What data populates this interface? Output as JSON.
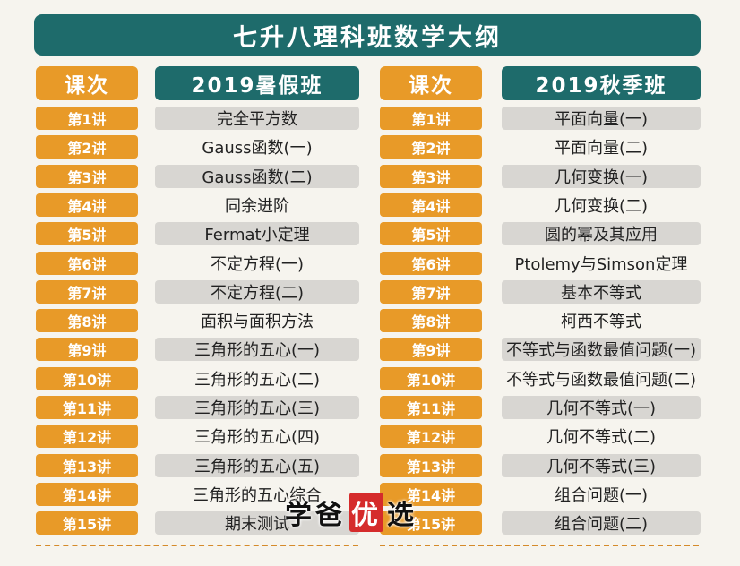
{
  "title": "七升八理科班数学大纲",
  "headers": {
    "left_lesson": "课次",
    "left_term": "2019暑假班",
    "right_lesson": "课次",
    "right_term": "2019秋季班"
  },
  "summer": [
    {
      "lecture": "第1讲",
      "topic": "完全平方数"
    },
    {
      "lecture": "第2讲",
      "topic": "Gauss函数(一)"
    },
    {
      "lecture": "第3讲",
      "topic": "Gauss函数(二)"
    },
    {
      "lecture": "第4讲",
      "topic": "同余进阶"
    },
    {
      "lecture": "第5讲",
      "topic": "Fermat小定理"
    },
    {
      "lecture": "第6讲",
      "topic": "不定方程(一)"
    },
    {
      "lecture": "第7讲",
      "topic": "不定方程(二)"
    },
    {
      "lecture": "第8讲",
      "topic": "面积与面积方法"
    },
    {
      "lecture": "第9讲",
      "topic": "三角形的五心(一)"
    },
    {
      "lecture": "第10讲",
      "topic": "三角形的五心(二)"
    },
    {
      "lecture": "第11讲",
      "topic": "三角形的五心(三)"
    },
    {
      "lecture": "第12讲",
      "topic": "三角形的五心(四)"
    },
    {
      "lecture": "第13讲",
      "topic": "三角形的五心(五)"
    },
    {
      "lecture": "第14讲",
      "topic": "三角形的五心综合"
    },
    {
      "lecture": "第15讲",
      "topic": "期末测试"
    }
  ],
  "autumn": [
    {
      "lecture": "第1讲",
      "topic": "平面向量(一)"
    },
    {
      "lecture": "第2讲",
      "topic": "平面向量(二)"
    },
    {
      "lecture": "第3讲",
      "topic": "几何变换(一)"
    },
    {
      "lecture": "第4讲",
      "topic": "几何变换(二)"
    },
    {
      "lecture": "第5讲",
      "topic": "圆的幂及其应用"
    },
    {
      "lecture": "第6讲",
      "topic": "Ptolemy与Simson定理"
    },
    {
      "lecture": "第7讲",
      "topic": "基本不等式"
    },
    {
      "lecture": "第8讲",
      "topic": "柯西不等式"
    },
    {
      "lecture": "第9讲",
      "topic": "不等式与函数最值问题(一)"
    },
    {
      "lecture": "第10讲",
      "topic": "不等式与函数最值问题(二)"
    },
    {
      "lecture": "第11讲",
      "topic": "几何不等式(一)"
    },
    {
      "lecture": "第12讲",
      "topic": "几何不等式(二)"
    },
    {
      "lecture": "第13讲",
      "topic": "几何不等式(三)"
    },
    {
      "lecture": "第14讲",
      "topic": "组合问题(一)"
    },
    {
      "lecture": "第15讲",
      "topic": "组合问题(二)"
    }
  ],
  "watermark": {
    "pre": "学爸",
    "highlight": "优",
    "post": "选"
  },
  "colors": {
    "teal": "#1e6b6b",
    "orange": "#e89a28",
    "shade": "#d8d6d2",
    "background": "#f6f4ee"
  }
}
